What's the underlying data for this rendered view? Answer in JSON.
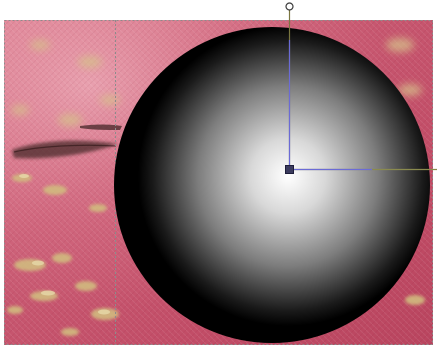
{
  "canvas": {
    "background_photo": "pink-fabric-with-gold-print",
    "object": {
      "shape": "sphere",
      "fill": "radial-gradient",
      "gradient_stops": [
        "#ffffff",
        "#c8c8c8",
        "#5a5a5a",
        "#000000"
      ]
    },
    "handles": {
      "center_handle": "square",
      "rotation_handle": "circle"
    },
    "colors": {
      "fabric_base": "#c7536b",
      "fabric_light": "#e38a9c",
      "gold_pattern": "#c9b27a",
      "vertical_guide": "#7a7640",
      "handle_line": "#6b6bd6",
      "horizontal_guide": "#8a8a4e",
      "selection_border": "#888888"
    }
  }
}
